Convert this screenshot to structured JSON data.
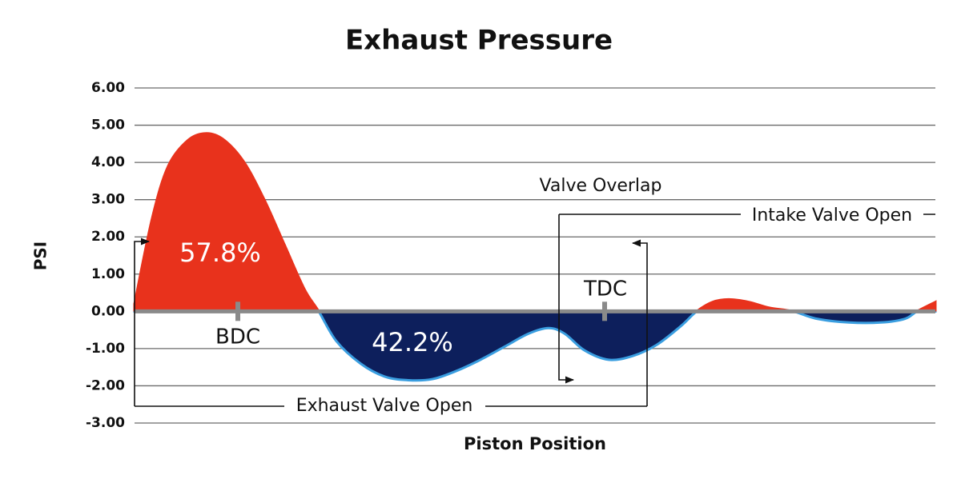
{
  "chart_data": {
    "type": "area",
    "title": "Exhaust Pressure",
    "y_label": "PSI",
    "x_label": "Piston Position",
    "x": [
      0,
      22,
      42,
      67,
      90,
      112,
      137,
      162,
      187,
      212,
      230,
      252,
      282,
      312,
      342,
      372,
      402,
      432,
      462,
      492,
      517,
      537,
      562,
      592,
      622,
      652,
      682,
      702,
      722,
      742,
      767,
      792,
      822,
      852,
      892,
      932,
      962,
      977,
      1000
    ],
    "values": [
      0.2,
      2.5,
      3.9,
      4.6,
      4.78,
      4.6,
      4.0,
      3.0,
      1.8,
      0.6,
      0,
      -0.8,
      -1.4,
      -1.75,
      -1.85,
      -1.82,
      -1.6,
      -1.3,
      -0.95,
      -0.6,
      -0.45,
      -0.6,
      -1.05,
      -1.3,
      -1.2,
      -0.9,
      -0.4,
      0,
      0.25,
      0.32,
      0.25,
      0.1,
      0,
      -0.2,
      -0.3,
      -0.3,
      -0.2,
      0,
      0.25
    ],
    "positive_color": "#e8321c",
    "negative_color": "#0d1f5c",
    "negative_edge_color": "#3a9ee0",
    "xlim": [
      0,
      1000
    ],
    "ylim": [
      -3,
      6
    ],
    "yticks": [
      {
        "value": 6,
        "label": "6.00"
      },
      {
        "value": 5,
        "label": "5.00"
      },
      {
        "value": 4,
        "label": "4.00"
      },
      {
        "value": 3,
        "label": "3.00"
      },
      {
        "value": 2,
        "label": "2.00"
      },
      {
        "value": 1,
        "label": "1.00"
      },
      {
        "value": 0,
        "label": "0.00"
      },
      {
        "value": -1,
        "label": "-1.00"
      },
      {
        "value": -2,
        "label": "-2.00"
      },
      {
        "value": -3,
        "label": "-3.00"
      }
    ],
    "grid": true,
    "annotations": {
      "positive_share": "57.8%",
      "negative_share": "42.2%",
      "bdc": "BDC",
      "tdc": "TDC",
      "valve_overlap": "Valve Overlap",
      "intake_valve_open": "Intake Valve Open",
      "exhaust_valve_open": "Exhaust Valve Open"
    }
  }
}
